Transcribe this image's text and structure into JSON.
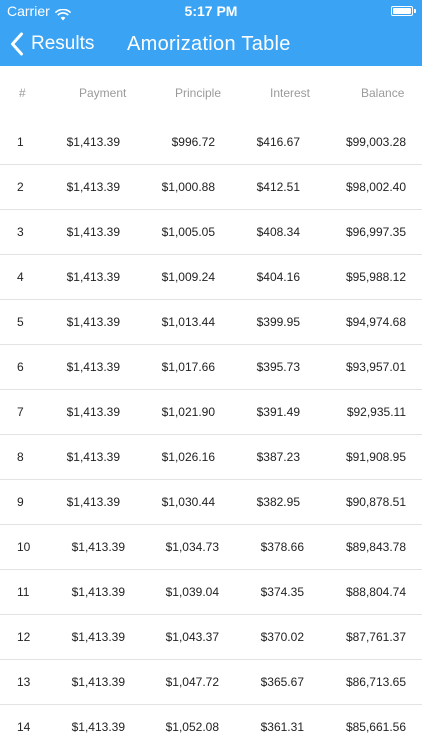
{
  "status_bar": {
    "carrier": "Carrier",
    "time": "5:17 PM"
  },
  "nav": {
    "back_label": "Results",
    "title": "Amorization Table"
  },
  "table": {
    "columns": [
      "#",
      "Payment",
      "Principle",
      "Interest",
      "Balance"
    ],
    "rows": [
      {
        "n": "1",
        "payment": "$1,413.39",
        "principle": "$996.72",
        "interest": "$416.67",
        "balance": "$99,003.28"
      },
      {
        "n": "2",
        "payment": "$1,413.39",
        "principle": "$1,000.88",
        "interest": "$412.51",
        "balance": "$98,002.40"
      },
      {
        "n": "3",
        "payment": "$1,413.39",
        "principle": "$1,005.05",
        "interest": "$408.34",
        "balance": "$96,997.35"
      },
      {
        "n": "4",
        "payment": "$1,413.39",
        "principle": "$1,009.24",
        "interest": "$404.16",
        "balance": "$95,988.12"
      },
      {
        "n": "5",
        "payment": "$1,413.39",
        "principle": "$1,013.44",
        "interest": "$399.95",
        "balance": "$94,974.68"
      },
      {
        "n": "6",
        "payment": "$1,413.39",
        "principle": "$1,017.66",
        "interest": "$395.73",
        "balance": "$93,957.01"
      },
      {
        "n": "7",
        "payment": "$1,413.39",
        "principle": "$1,021.90",
        "interest": "$391.49",
        "balance": "$92,935.11"
      },
      {
        "n": "8",
        "payment": "$1,413.39",
        "principle": "$1,026.16",
        "interest": "$387.23",
        "balance": "$91,908.95"
      },
      {
        "n": "9",
        "payment": "$1,413.39",
        "principle": "$1,030.44",
        "interest": "$382.95",
        "balance": "$90,878.51"
      },
      {
        "n": "10",
        "payment": "$1,413.39",
        "principle": "$1,034.73",
        "interest": "$378.66",
        "balance": "$89,843.78"
      },
      {
        "n": "11",
        "payment": "$1,413.39",
        "principle": "$1,039.04",
        "interest": "$374.35",
        "balance": "$88,804.74"
      },
      {
        "n": "12",
        "payment": "$1,413.39",
        "principle": "$1,043.37",
        "interest": "$370.02",
        "balance": "$87,761.37"
      },
      {
        "n": "13",
        "payment": "$1,413.39",
        "principle": "$1,047.72",
        "interest": "$365.67",
        "balance": "$86,713.65"
      },
      {
        "n": "14",
        "payment": "$1,413.39",
        "principle": "$1,052.08",
        "interest": "$361.31",
        "balance": "$85,661.56"
      }
    ]
  },
  "colors": {
    "accent": "#3aa3f3",
    "header_text": "#9a9a9a",
    "row_divider": "#e3e3e3"
  },
  "icons": {
    "wifi": "wifi-icon",
    "battery": "battery-icon",
    "back": "chevron-left-icon"
  }
}
